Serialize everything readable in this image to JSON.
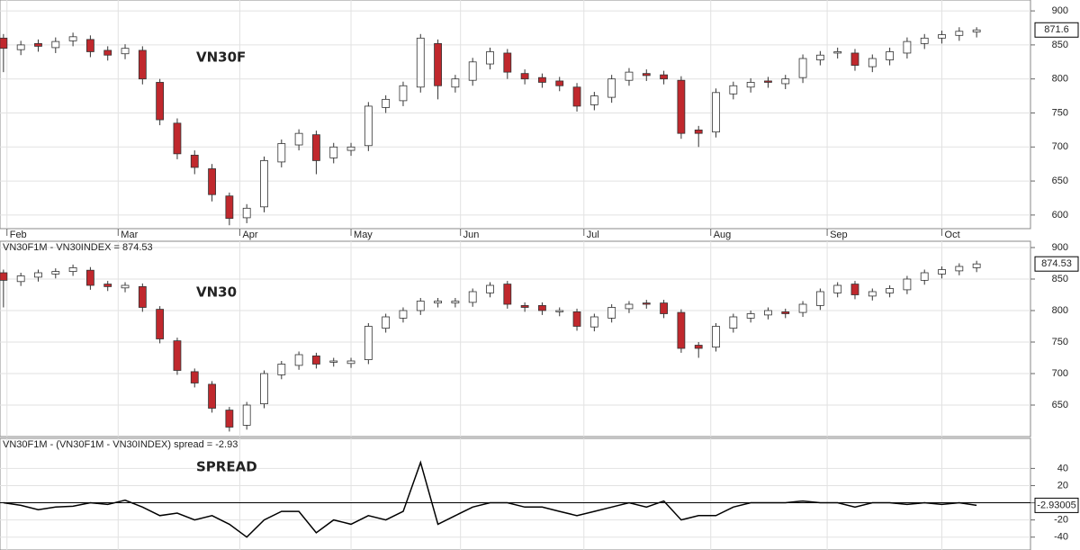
{
  "chart_data": [
    {
      "type": "candlestick",
      "annotation": "VN30F",
      "last_label": "871.6",
      "up_color": "#ffffff",
      "down_color": "#c0282d",
      "xlim": [
        -0.2,
        59.1
      ],
      "xticks": [
        {
          "value": 0.2,
          "label": "Feb"
        },
        {
          "value": 6.6,
          "label": "Mar"
        },
        {
          "value": 13.6,
          "label": "Apr"
        },
        {
          "value": 20,
          "label": "May"
        },
        {
          "value": 26.3,
          "label": "Jun"
        },
        {
          "value": 33.4,
          "label": "Jul"
        },
        {
          "value": 40.7,
          "label": "Aug"
        },
        {
          "value": 47.4,
          "label": "Sep"
        },
        {
          "value": 54,
          "label": "Oct"
        }
      ],
      "ylim": [
        580,
        916
      ],
      "yticks": [
        600,
        650,
        700,
        750,
        800,
        850,
        900
      ],
      "grid": true,
      "open": [
        860,
        843,
        852,
        846,
        856,
        858,
        842,
        837,
        842,
        795,
        735,
        688,
        668,
        628,
        596,
        612,
        678,
        703,
        718,
        684,
        695,
        702,
        758,
        768,
        788,
        852,
        788,
        798,
        822,
        838,
        808,
        802,
        797,
        788,
        762,
        773,
        798,
        808,
        806,
        798,
        725,
        722,
        778,
        788,
        797,
        793,
        802,
        828,
        838,
        838,
        818,
        828,
        838,
        852,
        860,
        864,
        869
      ],
      "high": [
        866,
        856,
        858,
        861,
        868,
        864,
        848,
        851,
        848,
        800,
        742,
        695,
        675,
        633,
        616,
        686,
        711,
        726,
        724,
        706,
        706,
        766,
        776,
        796,
        866,
        858,
        806,
        831,
        846,
        844,
        814,
        808,
        803,
        794,
        781,
        806,
        816,
        814,
        812,
        804,
        731,
        786,
        796,
        801,
        803,
        806,
        836,
        841,
        846,
        844,
        836,
        846,
        861,
        866,
        871,
        876,
        876
      ],
      "low": [
        810,
        835,
        840,
        838,
        848,
        832,
        827,
        829,
        792,
        732,
        682,
        660,
        620,
        585,
        588,
        604,
        670,
        695,
        660,
        676,
        687,
        694,
        750,
        760,
        780,
        770,
        780,
        790,
        814,
        800,
        792,
        787,
        782,
        752,
        754,
        765,
        790,
        797,
        792,
        712,
        700,
        714,
        770,
        780,
        787,
        785,
        794,
        820,
        830,
        812,
        810,
        820,
        830,
        844,
        852,
        856,
        861
      ],
      "close": [
        845,
        850,
        848,
        855,
        862,
        840,
        835,
        845,
        800,
        740,
        690,
        670,
        630,
        595,
        610,
        680,
        705,
        720,
        680,
        700,
        700,
        760,
        770,
        790,
        860,
        790,
        800,
        825,
        840,
        810,
        800,
        795,
        790,
        760,
        775,
        800,
        810,
        805,
        800,
        720,
        720,
        780,
        790,
        795,
        795,
        800,
        830,
        835,
        840,
        820,
        830,
        840,
        855,
        860,
        865,
        870,
        872
      ]
    },
    {
      "type": "candlestick",
      "header": "VN30F1M - VN30INDEX = 874.53",
      "annotation": "VN30",
      "last_label": "874.53",
      "up_color": "#ffffff",
      "down_color": "#c0282d",
      "ylim": [
        600,
        910
      ],
      "yticks": [
        650,
        700,
        750,
        800,
        850,
        900
      ],
      "grid": true,
      "open": [
        860,
        846,
        853,
        858,
        862,
        864,
        842,
        836,
        838,
        802,
        752,
        703,
        683,
        642,
        618,
        652,
        698,
        713,
        728,
        718,
        716,
        722,
        772,
        788,
        800,
        812,
        812,
        813,
        828,
        842,
        808,
        808,
        798,
        798,
        774,
        788,
        803,
        812,
        812,
        797,
        745,
        742,
        772,
        788,
        793,
        798,
        797,
        808,
        828,
        842,
        823,
        828,
        833,
        848,
        858,
        863,
        868
      ],
      "high": [
        865,
        860,
        865,
        867,
        873,
        869,
        847,
        845,
        843,
        807,
        757,
        708,
        688,
        647,
        655,
        705,
        720,
        735,
        733,
        725,
        725,
        780,
        795,
        805,
        820,
        820,
        820,
        835,
        845,
        847,
        813,
        813,
        805,
        803,
        795,
        810,
        815,
        817,
        817,
        802,
        750,
        780,
        795,
        800,
        805,
        803,
        815,
        835,
        845,
        847,
        835,
        840,
        855,
        865,
        870,
        875,
        879
      ],
      "low": [
        805,
        839,
        846,
        851,
        855,
        833,
        831,
        829,
        798,
        748,
        698,
        678,
        638,
        608,
        611,
        645,
        691,
        706,
        708,
        711,
        709,
        715,
        765,
        781,
        793,
        805,
        805,
        806,
        821,
        803,
        798,
        793,
        791,
        768,
        767,
        781,
        796,
        803,
        788,
        733,
        725,
        735,
        765,
        781,
        786,
        788,
        790,
        801,
        821,
        818,
        816,
        821,
        826,
        841,
        851,
        856,
        861
      ],
      "close": [
        848,
        855,
        860,
        862,
        868,
        840,
        838,
        840,
        805,
        755,
        705,
        685,
        645,
        615,
        650,
        700,
        715,
        730,
        715,
        720,
        720,
        775,
        790,
        800,
        815,
        815,
        815,
        830,
        840,
        810,
        805,
        800,
        800,
        775,
        790,
        805,
        810,
        810,
        795,
        740,
        740,
        775,
        790,
        795,
        800,
        795,
        810,
        830,
        840,
        825,
        830,
        835,
        850,
        860,
        865,
        870,
        874
      ]
    },
    {
      "type": "line",
      "header": "VN30F1M - (VN30F1M - VN30INDEX) spread = -2.93",
      "annotation": "SPREAD",
      "last_label": "-2.93005",
      "color": "#000000",
      "hline": 0,
      "ylim": [
        -55,
        75
      ],
      "yticks": [
        -40,
        -20,
        0,
        20,
        40
      ],
      "grid": true,
      "values": [
        0,
        -3,
        -8,
        -5,
        -4,
        0,
        -2,
        3,
        -5,
        -15,
        -12,
        -20,
        -15,
        -25,
        -40,
        -20,
        -10,
        -10,
        -35,
        -20,
        -25,
        -15,
        -20,
        -10,
        47,
        -25,
        -15,
        -5,
        0,
        0,
        -5,
        -5,
        -10,
        -15,
        -10,
        -5,
        0,
        -5,
        2,
        -20,
        -15,
        -15,
        -5,
        0,
        0,
        0,
        2,
        0,
        0,
        -5,
        0,
        0,
        -2,
        0,
        -2,
        0,
        -3
      ]
    }
  ]
}
